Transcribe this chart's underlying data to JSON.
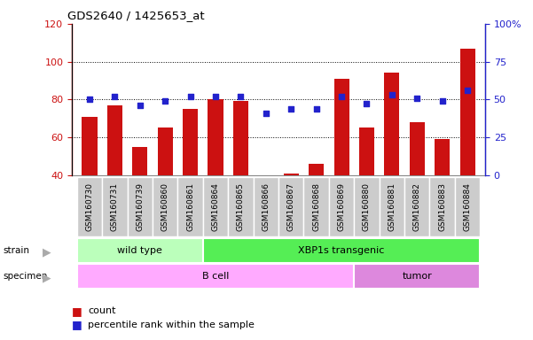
{
  "title": "GDS2640 / 1425653_at",
  "samples": [
    "GSM160730",
    "GSM160731",
    "GSM160739",
    "GSM160860",
    "GSM160861",
    "GSM160864",
    "GSM160865",
    "GSM160866",
    "GSM160867",
    "GSM160868",
    "GSM160869",
    "GSM160880",
    "GSM160881",
    "GSM160882",
    "GSM160883",
    "GSM160884"
  ],
  "counts": [
    71,
    77,
    55,
    65,
    75,
    80,
    79,
    40,
    41,
    46,
    91,
    65,
    94,
    68,
    59,
    107
  ],
  "percentiles": [
    50,
    52,
    46,
    49,
    52,
    52,
    52,
    41,
    44,
    44,
    52,
    47,
    53,
    51,
    49,
    56
  ],
  "ylim_left": [
    40,
    120
  ],
  "ylim_right": [
    0,
    100
  ],
  "yticks_left": [
    40,
    60,
    80,
    100,
    120
  ],
  "yticks_right": [
    0,
    25,
    50,
    75,
    100
  ],
  "bar_color": "#cc1111",
  "dot_color": "#2222cc",
  "strain_groups": [
    {
      "label": "wild type",
      "start": 0,
      "end": 5
    },
    {
      "label": "XBP1s transgenic",
      "start": 5,
      "end": 16
    }
  ],
  "specimen_groups": [
    {
      "label": "B cell",
      "start": 0,
      "end": 11
    },
    {
      "label": "tumor",
      "start": 11,
      "end": 16
    }
  ],
  "strain_colors": [
    "#bbffbb",
    "#55ee55"
  ],
  "specimen_colors": [
    "#ffaaff",
    "#dd88dd"
  ],
  "legend_count_label": "count",
  "legend_pct_label": "percentile rank within the sample",
  "tick_bg_color": "#cccccc",
  "bar_width": 0.6
}
